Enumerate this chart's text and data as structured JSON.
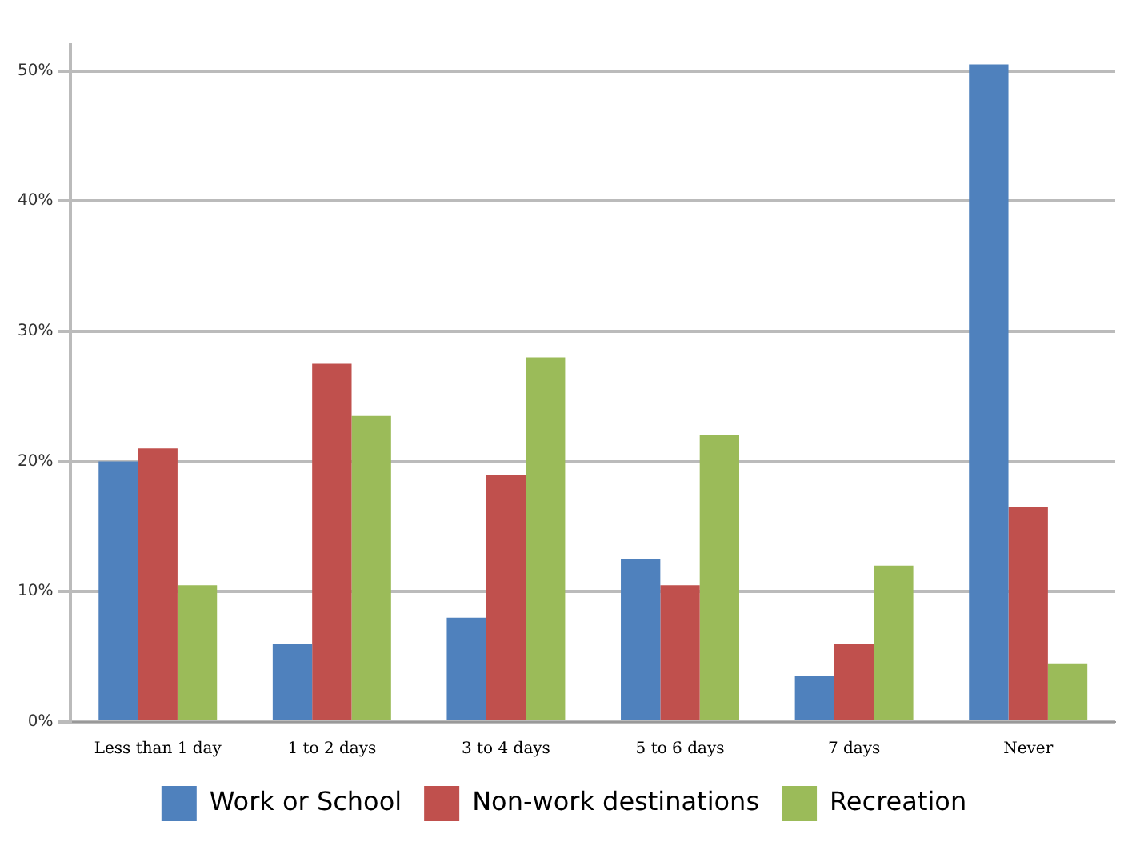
{
  "chart_data": {
    "type": "bar",
    "categories": [
      "Less than 1 day",
      "1 to 2 days",
      "3 to 4 days",
      "5 to 6 days",
      "7 days",
      "Never"
    ],
    "series": [
      {
        "name": "Work or School",
        "color": "#4f81bd",
        "values": [
          20,
          6,
          8,
          12.5,
          3.5,
          50.5
        ]
      },
      {
        "name": "Non-work destinations",
        "color": "#c0504d",
        "values": [
          21,
          27.5,
          19,
          10.5,
          6,
          16.5
        ]
      },
      {
        "name": "Recreation",
        "color": "#9bbb59",
        "values": [
          10.5,
          23.5,
          28,
          22,
          12,
          4.5
        ]
      }
    ],
    "ylim": [
      0,
      52
    ],
    "yticks": [
      {
        "value": 0,
        "label": "0%"
      },
      {
        "value": 10,
        "label": "10%"
      },
      {
        "value": 20,
        "label": "20%"
      },
      {
        "value": 30,
        "label": "30%"
      },
      {
        "value": 40,
        "label": "40%"
      },
      {
        "value": 50,
        "label": "50%"
      }
    ],
    "grid": "y",
    "legend": "bottom"
  }
}
